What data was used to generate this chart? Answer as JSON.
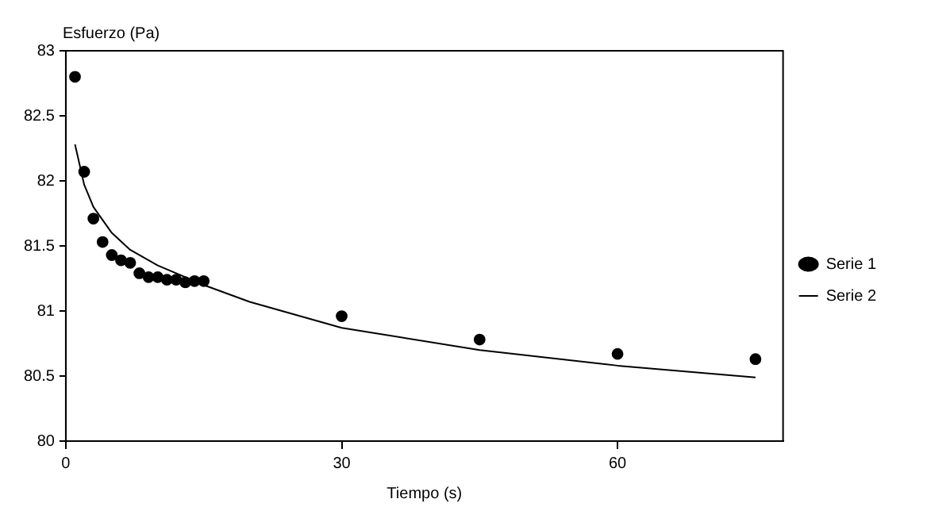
{
  "chart_data": {
    "type": "scatter",
    "xlabel": "Tiempo (s)",
    "ylabel": "Esfuerzo (Pa)",
    "xlim": [
      0,
      78
    ],
    "xticks": [
      0,
      30,
      60
    ],
    "ylim": [
      80,
      83
    ],
    "yticks": [
      80,
      80.5,
      81,
      81.5,
      82,
      82.5,
      83
    ],
    "grid": false,
    "legend": "right",
    "series": [
      {
        "name": "Serie 1",
        "type": "scatter",
        "marker": "circle",
        "color": "#000000",
        "x": [
          1,
          2,
          3,
          4,
          5,
          6,
          7,
          8,
          9,
          10,
          11,
          12,
          13,
          14,
          15,
          30,
          45,
          60,
          75
        ],
        "values": [
          82.8,
          82.07,
          81.71,
          81.53,
          81.43,
          81.39,
          81.37,
          81.29,
          81.26,
          81.26,
          81.24,
          81.24,
          81.22,
          81.23,
          81.23,
          80.96,
          80.78,
          80.67,
          80.63
        ]
      },
      {
        "name": "Serie 2",
        "type": "line",
        "marker": "none",
        "line_style": "solid",
        "color": "#000000",
        "x": [
          1,
          2,
          3,
          5,
          7,
          10,
          15,
          20,
          30,
          45,
          60,
          75
        ],
        "values": [
          82.28,
          81.97,
          81.8,
          81.6,
          81.47,
          81.35,
          81.2,
          81.07,
          80.87,
          80.7,
          80.58,
          80.49
        ]
      }
    ]
  }
}
